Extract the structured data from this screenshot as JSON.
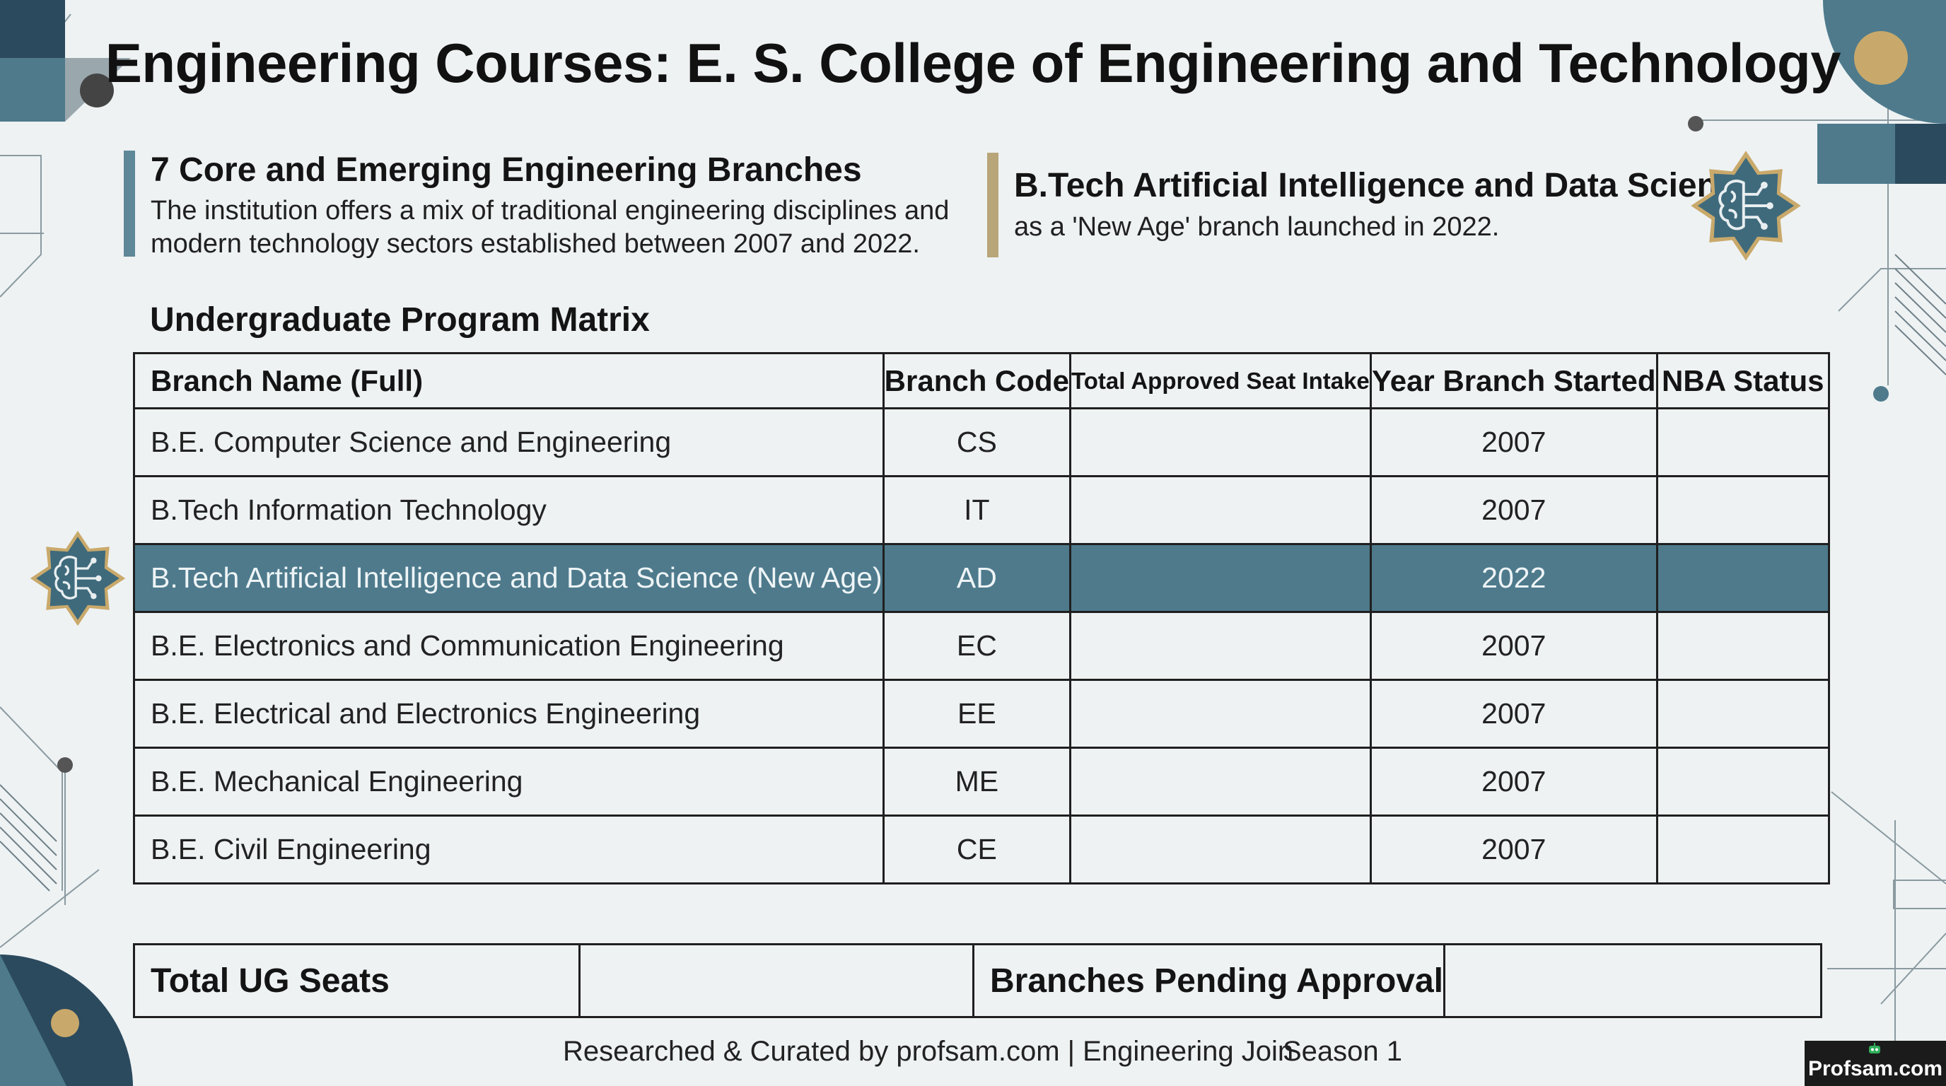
{
  "title": "Engineering Courses: E. S. College of Engineering and Technology",
  "info_left": {
    "heading": "7 Core and Emerging Engineering Branches",
    "lines": [
      "The institution offers a mix of traditional engineering disciplines and",
      "modern technology sectors established between 2007 and 2022."
    ]
  },
  "info_right": {
    "heading": "B.Tech Artificial Intelligence and Data Science",
    "text": "as a 'New Age' branch launched in 2022.",
    "icon": "brain-circuit-icon"
  },
  "matrix": {
    "title": "Undergraduate Program Matrix",
    "columns": [
      "Branch Name (Full)",
      "Branch Code",
      "Total Approved Seat Intake",
      "Year Branch Started",
      "NBA Status"
    ],
    "rows": [
      {
        "name": "B.E. Computer Science and Engineering",
        "code": "CS",
        "seats": "",
        "year": "2007",
        "nba": ""
      },
      {
        "name": "B.Tech Information Technology",
        "code": "IT",
        "seats": "",
        "year": "2007",
        "nba": ""
      },
      {
        "name": "B.Tech Artificial Intelligence and Data Science (New Age)",
        "code": "AD",
        "seats": "",
        "year": "2022",
        "nba": ""
      },
      {
        "name": "B.E. Electronics and Communication Engineering",
        "code": "EC",
        "seats": "",
        "year": "2007",
        "nba": ""
      },
      {
        "name": "B.E. Electrical and Electronics Engineering",
        "code": "EE",
        "seats": "",
        "year": "2007",
        "nba": ""
      },
      {
        "name": "B.E. Mechanical Engineering",
        "code": "ME",
        "seats": "",
        "year": "2007",
        "nba": ""
      },
      {
        "name": "B.E. Civil Engineering",
        "code": "CE",
        "seats": "",
        "year": "2007",
        "nba": ""
      }
    ],
    "highlight_color": "#4e7a8c"
  },
  "totals": {
    "ug_seats_label": "Total UG Seats",
    "ug_seats_value": "",
    "pending_label": "Branches Pending Approval",
    "pending_value": ""
  },
  "footer": {
    "credit": "Researched & Curated by profsam.com | Engineering Join",
    "season": "Season 1"
  },
  "watermark": "Profsam.com",
  "colors": {
    "accent_teal": "#4e7a8c",
    "accent_gold": "#c9a96b",
    "accent_navy": "#2c4a5e",
    "background": "#eef2f3"
  }
}
